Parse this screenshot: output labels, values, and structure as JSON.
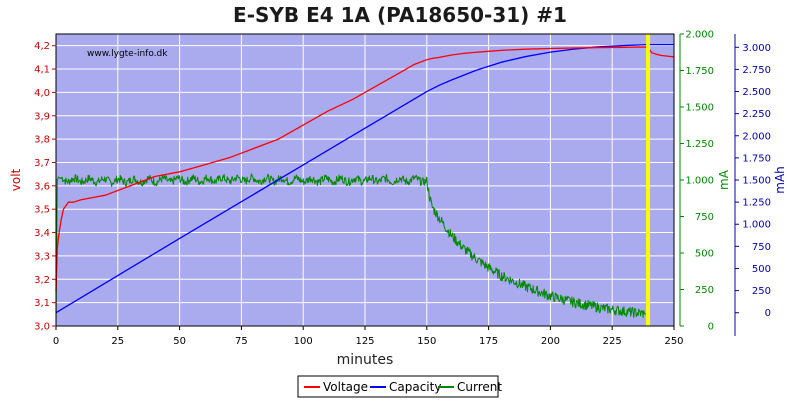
{
  "chart_data": {
    "type": "line",
    "title": "E-SYB E4 1A (PA18650-31) #1",
    "watermark": "www.lygte-info.dk",
    "xlabel": "minutes",
    "xlim": [
      0,
      250
    ],
    "xticks": [
      "0",
      "25",
      "50",
      "75",
      "100",
      "125",
      "150",
      "175",
      "200",
      "225",
      "250"
    ],
    "grid": true,
    "legend_position": "bottom-center",
    "background_color": "#aaaaee",
    "axes": {
      "volt": {
        "label": "volt",
        "color": "#cc0000",
        "lim": [
          3.0,
          4.25
        ],
        "ticks": [
          "3,0",
          "3,1",
          "3,2",
          "3,3",
          "3,4",
          "3,5",
          "3,6",
          "3,7",
          "3,8",
          "3,9",
          "4,0",
          "4,1",
          "4,2"
        ]
      },
      "ma": {
        "label": "mA",
        "color": "#008800",
        "lim": [
          0,
          2000
        ],
        "ticks": [
          "0",
          "250",
          "500",
          "750",
          "1.000",
          "1.250",
          "1.500",
          "1.750",
          "2.000"
        ]
      },
      "mah": {
        "label": "mAh",
        "color": "#0000aa",
        "lim": [
          -150,
          3150
        ],
        "ticks": [
          "0",
          "250",
          "500",
          "750",
          "1.000",
          "1.250",
          "1.500",
          "1.750",
          "2.000",
          "2.250",
          "2.500",
          "2.750",
          "3.000"
        ]
      }
    },
    "marker": {
      "x": 239.5,
      "color": "#ffff00"
    },
    "series": [
      {
        "name": "Voltage",
        "axis": "volt",
        "color": "#ff0000",
        "x": [
          0,
          0.5,
          1,
          2,
          3,
          5,
          7,
          10,
          15,
          20,
          25,
          30,
          35,
          40,
          45,
          50,
          60,
          70,
          80,
          90,
          100,
          110,
          120,
          130,
          140,
          145,
          150,
          152,
          155,
          160,
          165,
          170,
          175,
          180,
          190,
          200,
          210,
          220,
          230,
          235,
          238,
          239.5,
          240,
          241,
          243,
          245,
          250
        ],
        "values": [
          3.15,
          3.33,
          3.38,
          3.45,
          3.5,
          3.53,
          3.53,
          3.54,
          3.55,
          3.56,
          3.58,
          3.6,
          3.62,
          3.64,
          3.65,
          3.66,
          3.69,
          3.72,
          3.76,
          3.8,
          3.86,
          3.92,
          3.97,
          4.03,
          4.09,
          4.12,
          4.14,
          4.145,
          4.15,
          4.16,
          4.167,
          4.172,
          4.176,
          4.18,
          4.185,
          4.188,
          4.19,
          4.192,
          4.193,
          4.194,
          4.194,
          4.194,
          4.185,
          4.17,
          4.163,
          4.158,
          4.152
        ]
      },
      {
        "name": "Capacity",
        "axis": "mah",
        "color": "#0000ff",
        "x": [
          0,
          25,
          50,
          75,
          100,
          125,
          150,
          155,
          160,
          170,
          180,
          190,
          200,
          210,
          220,
          230,
          239.5,
          250
        ],
        "values": [
          0,
          420,
          840,
          1255,
          1670,
          2085,
          2500,
          2570,
          2630,
          2740,
          2830,
          2895,
          2945,
          2980,
          3005,
          3020,
          3030,
          3030
        ]
      },
      {
        "name": "Current",
        "axis": "ma",
        "color": "#008800",
        "x": [
          0,
          0.5,
          1,
          2,
          5,
          25,
          50,
          75,
          100,
          125,
          148,
          150,
          151,
          152,
          155,
          160,
          165,
          170,
          175,
          180,
          190,
          200,
          210,
          220,
          230,
          235,
          238,
          239,
          239.5,
          240
        ],
        "values": [
          0,
          1000,
          1020,
          1010,
          1000,
          995,
          1000,
          1005,
          1000,
          1000,
          1000,
          990,
          900,
          820,
          740,
          620,
          530,
          460,
          400,
          345,
          270,
          205,
          160,
          125,
          100,
          90,
          85,
          80,
          40,
          0
        ]
      }
    ]
  }
}
